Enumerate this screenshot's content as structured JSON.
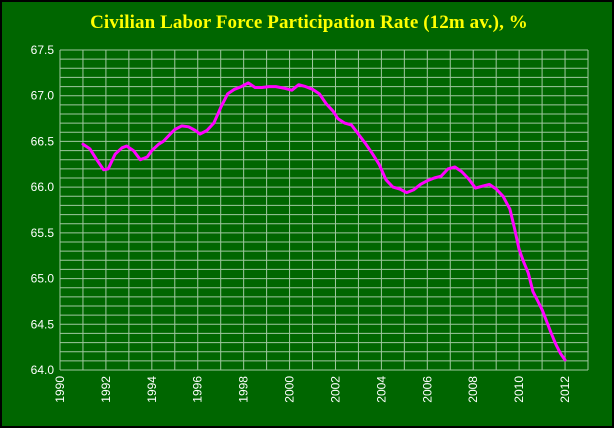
{
  "chart_data": {
    "type": "line",
    "title": "Civilian Labor Force Participation Rate (12m av.), %",
    "xlabel": "",
    "ylabel": "",
    "xlim": [
      1990,
      2013
    ],
    "ylim": [
      64.0,
      67.5
    ],
    "grid": true,
    "legend": "none",
    "x_ticks": [
      "1990",
      "1992",
      "1994",
      "1996",
      "1998",
      "2000",
      "2002",
      "2004",
      "2006",
      "2008",
      "2010",
      "2012"
    ],
    "y_ticks": [
      "64.0",
      "64.5",
      "65.0",
      "65.5",
      "66.0",
      "66.5",
      "67.0",
      "67.5"
    ],
    "series": [
      {
        "color": "#ff00ff",
        "x": [
          1991.0,
          1991.3,
          1991.6,
          1991.9,
          1992.1,
          1992.4,
          1992.7,
          1992.9,
          1993.2,
          1993.5,
          1993.8,
          1994.0,
          1994.3,
          1994.5,
          1994.8,
          1995.0,
          1995.3,
          1995.6,
          1995.9,
          1996.1,
          1996.4,
          1996.7,
          1997.0,
          1997.3,
          1997.6,
          1997.9,
          1998.2,
          1998.5,
          1998.8,
          1999.1,
          1999.4,
          1999.8,
          2000.1,
          2000.4,
          2000.7,
          2001.0,
          2001.3,
          2001.6,
          2001.9,
          2002.1,
          2002.4,
          2002.7,
          2003.0,
          2003.3,
          2003.6,
          2003.9,
          2004.2,
          2004.5,
          2004.8,
          2005.1,
          2005.4,
          2005.7,
          2006.0,
          2006.3,
          2006.6,
          2006.9,
          2007.2,
          2007.5,
          2007.8,
          2008.1,
          2008.4,
          2008.7,
          2009.0,
          2009.3,
          2009.6,
          2009.8,
          2010.0,
          2010.2,
          2010.4,
          2010.6,
          2010.8,
          2011.0,
          2011.2,
          2011.4,
          2011.6,
          2011.8,
          2012.0
        ],
        "values": [
          66.47,
          66.42,
          66.3,
          66.19,
          66.2,
          66.36,
          66.43,
          66.45,
          66.4,
          66.3,
          66.33,
          66.4,
          66.47,
          66.5,
          66.58,
          66.63,
          66.67,
          66.66,
          66.62,
          66.58,
          66.62,
          66.7,
          66.87,
          67.02,
          67.07,
          67.1,
          67.14,
          67.09,
          67.09,
          67.1,
          67.1,
          67.08,
          67.06,
          67.12,
          67.1,
          67.07,
          67.02,
          66.91,
          66.83,
          66.75,
          66.7,
          66.68,
          66.58,
          66.48,
          66.37,
          66.25,
          66.08,
          66.0,
          65.98,
          65.94,
          65.97,
          66.03,
          66.07,
          66.1,
          66.12,
          66.2,
          66.22,
          66.17,
          66.09,
          65.99,
          66.01,
          66.03,
          65.98,
          65.9,
          65.76,
          65.55,
          65.32,
          65.18,
          65.06,
          64.86,
          64.76,
          64.66,
          64.53,
          64.4,
          64.28,
          64.18,
          64.11
        ]
      }
    ]
  },
  "colors": {
    "background": "#006600",
    "grid": "#a0c8a0",
    "title": "#ffff00",
    "axis_text": "#ffffff",
    "line": "#ff00ff"
  }
}
